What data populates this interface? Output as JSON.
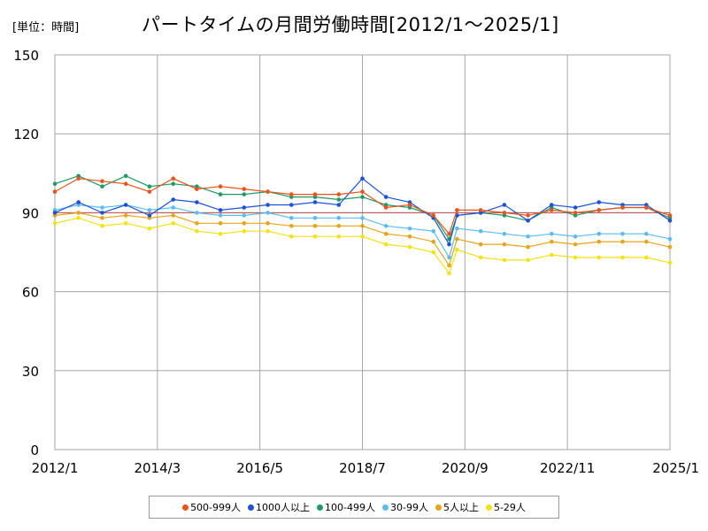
{
  "header": {
    "unit": "[単位：時間]",
    "title": "パートタイムの月間労働時間[2012/1～2025/1]"
  },
  "chart_data": {
    "type": "line",
    "title": "パートタイムの月間労働時間[2012/1～2025/1]",
    "unit": "[単位：時間]",
    "xlabel": "",
    "ylabel": "",
    "ylim": [
      0,
      150
    ],
    "yticks": [
      0,
      30,
      60,
      90,
      120,
      150
    ],
    "xlim": [
      "2012/1",
      "2025/1"
    ],
    "xticks": [
      "2012/1",
      "2014/3",
      "2016/5",
      "2018/7",
      "2020/9",
      "2022/11",
      "2025/1"
    ],
    "grid": true,
    "legend_position": "bottom",
    "reference_line": 90,
    "x": [
      "2012/1",
      "2012/7",
      "2013/1",
      "2013/7",
      "2014/1",
      "2014/7",
      "2015/1",
      "2015/7",
      "2016/1",
      "2016/7",
      "2017/1",
      "2017/7",
      "2018/1",
      "2018/7",
      "2019/1",
      "2019/7",
      "2020/1",
      "2020/5",
      "2020/7",
      "2021/1",
      "2021/7",
      "2022/1",
      "2022/7",
      "2023/1",
      "2023/7",
      "2024/1",
      "2024/7",
      "2025/1"
    ],
    "series": [
      {
        "name": "500-999人",
        "color": "#e8541c",
        "values": [
          98,
          103,
          102,
          101,
          98,
          103,
          99,
          100,
          99,
          98,
          97,
          97,
          97,
          98,
          92,
          93,
          89,
          82,
          91,
          91,
          90,
          89,
          91,
          90,
          91,
          92,
          92,
          89
        ]
      },
      {
        "name": "1000人以上",
        "color": "#1c52d6",
        "values": [
          90,
          94,
          90,
          93,
          89,
          95,
          94,
          91,
          92,
          93,
          93,
          94,
          93,
          103,
          96,
          94,
          88,
          78,
          89,
          90,
          93,
          87,
          93,
          92,
          94,
          93,
          93,
          87
        ]
      },
      {
        "name": "100-499人",
        "color": "#1f9a66",
        "values": [
          101,
          104,
          100,
          104,
          100,
          101,
          100,
          97,
          97,
          98,
          96,
          96,
          95,
          96,
          93,
          92,
          89,
          80,
          89,
          90,
          89,
          87,
          92,
          89,
          91,
          92,
          92,
          88
        ]
      },
      {
        "name": "30-99人",
        "color": "#5bbcf0",
        "values": [
          91,
          93,
          92,
          93,
          91,
          92,
          90,
          89,
          89,
          90,
          88,
          88,
          88,
          88,
          85,
          84,
          83,
          73,
          84,
          83,
          82,
          81,
          82,
          81,
          82,
          82,
          82,
          80
        ]
      },
      {
        "name": "5人以上",
        "color": "#e8a418",
        "values": [
          89,
          90,
          88,
          89,
          88,
          89,
          86,
          86,
          86,
          86,
          85,
          85,
          85,
          85,
          82,
          81,
          79,
          70,
          80,
          78,
          78,
          77,
          79,
          78,
          79,
          79,
          79,
          77
        ]
      },
      {
        "name": "5-29人",
        "color": "#f4e212",
        "values": [
          86,
          88,
          85,
          86,
          84,
          86,
          83,
          82,
          83,
          83,
          81,
          81,
          81,
          81,
          78,
          77,
          75,
          67,
          76,
          73,
          72,
          72,
          74,
          73,
          73,
          73,
          73,
          71
        ]
      }
    ]
  }
}
